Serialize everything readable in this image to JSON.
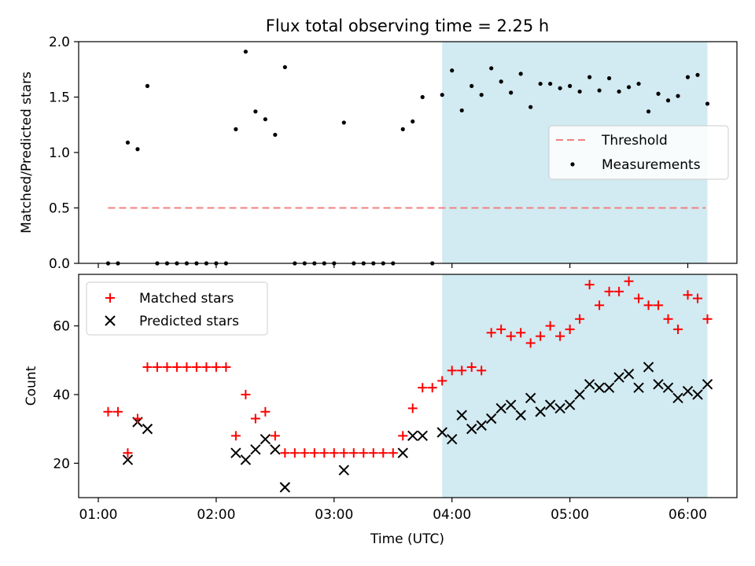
{
  "title": "Flux total observing time = 2.25 h",
  "colors": {
    "threshold": "#f08080",
    "measurement": "#000000",
    "matched": "#ff0000",
    "predicted": "#000000",
    "shade": "#add8e6"
  },
  "x_axis": {
    "label": "Time (UTC)",
    "unit": "minutes after 01:00 UTC",
    "range": [
      -10,
      325
    ],
    "ticks": [
      {
        "value": 0,
        "label": "01:00"
      },
      {
        "value": 60,
        "label": "02:00"
      },
      {
        "value": 120,
        "label": "03:00"
      },
      {
        "value": 180,
        "label": "04:00"
      },
      {
        "value": 240,
        "label": "05:00"
      },
      {
        "value": 300,
        "label": "06:00"
      }
    ]
  },
  "shaded_interval": [
    175,
    310
  ],
  "chart_data": [
    {
      "type": "scatter",
      "ylabel": "Matched/Predicted stars",
      "ylim": [
        0,
        2.0
      ],
      "yticks": [
        {
          "value": 0,
          "label": "0.0"
        },
        {
          "value": 0.5,
          "label": "0.5"
        },
        {
          "value": 1.0,
          "label": "1.0"
        },
        {
          "value": 1.5,
          "label": "1.5"
        },
        {
          "value": 2.0,
          "label": "2.0"
        }
      ],
      "legend": {
        "position": "center-right",
        "entries": [
          {
            "key": "threshold",
            "label": "Threshold"
          },
          {
            "key": "measurements",
            "label": "Measurements"
          }
        ]
      },
      "threshold": {
        "value": 0.5,
        "x_range": [
          5,
          309
        ]
      },
      "series": [
        {
          "key": "measurements",
          "x": [
            5,
            10,
            15,
            20,
            25,
            30,
            35,
            40,
            45,
            50,
            55,
            60,
            65,
            70,
            75,
            80,
            85,
            90,
            95,
            100,
            105,
            110,
            115,
            120,
            125,
            130,
            135,
            140,
            145,
            150,
            155,
            160,
            165,
            170,
            175,
            180,
            185,
            190,
            195,
            200,
            205,
            210,
            215,
            220,
            225,
            230,
            235,
            240,
            245,
            250,
            255,
            260,
            265,
            270,
            275,
            280,
            285,
            290,
            295,
            300,
            305,
            310
          ],
          "y": [
            0,
            0,
            1.09,
            1.03,
            1.6,
            0,
            0,
            0,
            0,
            0,
            0,
            0,
            0,
            1.21,
            1.91,
            1.37,
            1.3,
            1.16,
            1.77,
            0,
            0,
            0,
            0,
            0,
            1.27,
            0,
            0,
            0,
            0,
            0,
            1.21,
            1.28,
            1.5,
            0,
            1.52,
            1.74,
            1.38,
            1.6,
            1.52,
            1.76,
            1.64,
            1.54,
            1.71,
            1.41,
            1.62,
            1.62,
            1.58,
            1.6,
            1.55,
            1.68,
            1.56,
            1.67,
            1.55,
            1.59,
            1.62,
            1.37,
            1.53,
            1.47,
            1.51,
            1.68,
            1.7,
            1.44
          ]
        }
      ]
    },
    {
      "type": "scatter",
      "xlabel": "Time (UTC)",
      "ylabel": "Count",
      "ylim": [
        10,
        75
      ],
      "yticks": [
        {
          "value": 20,
          "label": "20"
        },
        {
          "value": 40,
          "label": "40"
        },
        {
          "value": 60,
          "label": "60"
        }
      ],
      "legend": {
        "position": "upper-left",
        "entries": [
          {
            "key": "matched",
            "label": "Matched stars"
          },
          {
            "key": "predicted",
            "label": "Predicted stars"
          }
        ]
      },
      "series": [
        {
          "key": "matched",
          "marker": "plus",
          "x": [
            5,
            10,
            15,
            20,
            25,
            30,
            35,
            40,
            45,
            50,
            55,
            60,
            65,
            70,
            75,
            80,
            85,
            90,
            95,
            100,
            105,
            110,
            115,
            120,
            125,
            130,
            135,
            140,
            145,
            150,
            155,
            160,
            165,
            170,
            175,
            180,
            185,
            190,
            195,
            200,
            205,
            210,
            215,
            220,
            225,
            230,
            235,
            240,
            245,
            250,
            255,
            260,
            265,
            270,
            275,
            280,
            285,
            290,
            295,
            300,
            305,
            310
          ],
          "y": [
            35,
            35,
            23,
            33,
            48,
            48,
            48,
            48,
            48,
            48,
            48,
            48,
            48,
            28,
            40,
            33,
            35,
            28,
            23,
            23,
            23,
            23,
            23,
            23,
            23,
            23,
            23,
            23,
            23,
            23,
            28,
            36,
            42,
            42,
            44,
            47,
            47,
            48,
            47,
            58,
            59,
            57,
            58,
            55,
            57,
            60,
            57,
            59,
            62,
            72,
            66,
            70,
            70,
            73,
            68,
            66,
            66,
            62,
            59,
            69,
            68,
            62
          ]
        },
        {
          "key": "predicted",
          "marker": "x",
          "x": [
            15,
            20,
            25,
            70,
            75,
            80,
            85,
            90,
            95,
            125,
            155,
            160,
            165,
            175,
            180,
            185,
            190,
            195,
            200,
            205,
            210,
            215,
            220,
            225,
            230,
            235,
            240,
            245,
            250,
            255,
            260,
            265,
            270,
            275,
            280,
            285,
            290,
            295,
            300,
            305,
            310
          ],
          "y": [
            21,
            32,
            30,
            23,
            21,
            24,
            27,
            24,
            13,
            18,
            23,
            28,
            28,
            29,
            27,
            34,
            30,
            31,
            33,
            36,
            37,
            34,
            39,
            35,
            37,
            36,
            37,
            40,
            43,
            42,
            42,
            45,
            46,
            42,
            48,
            43,
            42,
            39,
            41,
            40,
            43
          ]
        }
      ]
    }
  ]
}
